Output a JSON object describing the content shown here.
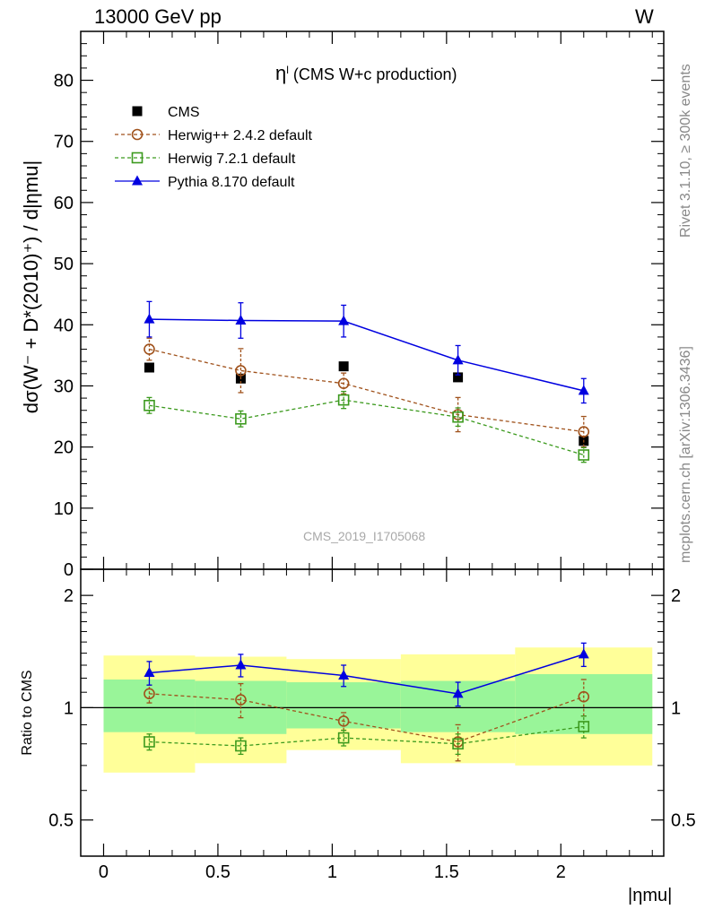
{
  "header": {
    "energy_label": "13000 GeV pp",
    "process_label": "W"
  },
  "side_labels": {
    "rivet": "Rivet 3.1.10, ≥ 300k events",
    "mcplots": "mcplots.cern.ch [arXiv:1306.3436]"
  },
  "watermark": "CMS_2019_I1705068",
  "chart_data": [
    {
      "type": "scatter",
      "panel": "main",
      "title": "ηl (CMS W+c production)",
      "title_main": "η",
      "title_sup": "l",
      "title_rest": " (CMS W+c production)",
      "ylabel": "dσ(W⁻ + D*(2010)⁺) / d|ηmu|",
      "xlabel": "|ηmu|",
      "xlim": [
        -0.1,
        2.45
      ],
      "ylim": [
        0,
        88
      ],
      "yticks": [
        0,
        10,
        20,
        30,
        40,
        50,
        60,
        70,
        80
      ],
      "xticks": [
        0,
        0.5,
        1,
        1.5,
        2
      ],
      "legend_position": "top-left",
      "x": [
        0.2,
        0.6,
        1.05,
        1.55,
        2.1
      ],
      "series": [
        {
          "name": "CMS",
          "color": "#000000",
          "marker": "filled-square",
          "line": "none",
          "values": [
            33.0,
            31.2,
            33.2,
            31.4,
            21.0
          ],
          "err": [
            0.6,
            0.6,
            0.5,
            0.6,
            0.6
          ]
        },
        {
          "name": "Herwig++ 2.4.2 default",
          "color": "#a0521c",
          "marker": "open-circle",
          "line": "dashed",
          "values": [
            36.0,
            32.5,
            30.4,
            25.3,
            22.5
          ],
          "err": [
            1.8,
            3.6,
            1.7,
            2.8,
            2.5
          ]
        },
        {
          "name": "Herwig 7.2.1 default",
          "color": "#3c9a1e",
          "marker": "open-square",
          "line": "dashed",
          "values": [
            26.8,
            24.6,
            27.7,
            24.9,
            18.7
          ],
          "err": [
            1.3,
            1.3,
            1.4,
            1.5,
            1.2
          ]
        },
        {
          "name": "Pythia 8.170 default",
          "color": "#0000e0",
          "marker": "filled-triangle",
          "line": "solid",
          "values": [
            40.9,
            40.7,
            40.6,
            34.2,
            29.2
          ],
          "err": [
            2.9,
            2.9,
            2.6,
            2.4,
            2.0
          ]
        }
      ]
    },
    {
      "type": "scatter",
      "panel": "ratio",
      "ylabel": "Ratio to CMS",
      "yscale": "log",
      "ylim": [
        0.4,
        2.35
      ],
      "yticks": [
        0.5,
        1,
        2
      ],
      "ytick_labels": [
        "0.5",
        "1",
        "2"
      ],
      "xticks": [
        0,
        0.5,
        1,
        1.5,
        2
      ],
      "xtick_labels": [
        "0",
        "0.5",
        "1",
        "1.5",
        "2"
      ],
      "reference_line": 1,
      "bands": [
        {
          "x_from": 0.0,
          "x_to": 0.4,
          "yellow": [
            0.67,
            1.38
          ],
          "green": [
            0.86,
            1.19
          ]
        },
        {
          "x_from": 0.4,
          "x_to": 0.8,
          "yellow": [
            0.71,
            1.37
          ],
          "green": [
            0.85,
            1.18
          ]
        },
        {
          "x_from": 0.8,
          "x_to": 1.3,
          "yellow": [
            0.77,
            1.35
          ],
          "green": [
            0.88,
            1.17
          ]
        },
        {
          "x_from": 1.3,
          "x_to": 1.8,
          "yellow": [
            0.71,
            1.39
          ],
          "green": [
            0.86,
            1.18
          ]
        },
        {
          "x_from": 1.8,
          "x_to": 2.4,
          "yellow": [
            0.7,
            1.45
          ],
          "green": [
            0.85,
            1.23
          ]
        }
      ],
      "band_colors": {
        "yellow": "#ffff99",
        "green": "#99f599"
      },
      "series": [
        {
          "name": "Herwig++ 2.4.2 default",
          "color": "#a0521c",
          "marker": "open-circle",
          "line": "dashed",
          "values": [
            1.09,
            1.05,
            0.92,
            0.81,
            1.07
          ],
          "err": [
            0.06,
            0.11,
            0.05,
            0.09,
            0.12
          ]
        },
        {
          "name": "Herwig 7.2.1 default",
          "color": "#3c9a1e",
          "marker": "open-square",
          "line": "dashed",
          "values": [
            0.81,
            0.79,
            0.83,
            0.8,
            0.89
          ],
          "err": [
            0.04,
            0.04,
            0.04,
            0.05,
            0.06
          ]
        },
        {
          "name": "Pythia 8.170 default",
          "color": "#0000e0",
          "marker": "filled-triangle",
          "line": "solid",
          "values": [
            1.24,
            1.3,
            1.22,
            1.09,
            1.39
          ],
          "err": [
            0.09,
            0.09,
            0.08,
            0.08,
            0.1
          ]
        }
      ]
    }
  ]
}
